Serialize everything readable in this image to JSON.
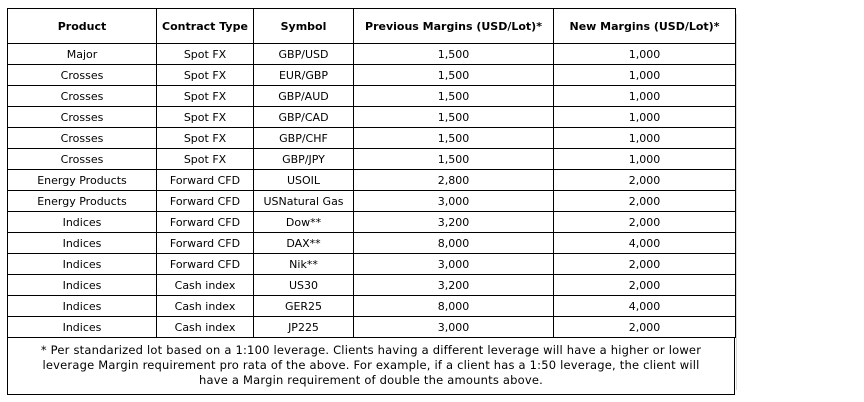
{
  "table": {
    "headers": [
      "Product",
      "Contract Type",
      "Symbol",
      "Previous Margins (USD/Lot)*",
      "New Margins (USD/Lot)*"
    ],
    "rows": [
      [
        "Major",
        "Spot FX",
        "GBP/USD",
        "1,500",
        "1,000"
      ],
      [
        "Crosses",
        "Spot FX",
        "EUR/GBP",
        "1,500",
        "1,000"
      ],
      [
        "Crosses",
        "Spot FX",
        "GBP/AUD",
        "1,500",
        "1,000"
      ],
      [
        "Crosses",
        "Spot FX",
        "GBP/CAD",
        "1,500",
        "1,000"
      ],
      [
        "Crosses",
        "Spot FX",
        "GBP/CHF",
        "1,500",
        "1,000"
      ],
      [
        "Crosses",
        "Spot FX",
        "GBP/JPY",
        "1,500",
        "1,000"
      ],
      [
        "Energy Products",
        "Forward CFD",
        "USOIL",
        "2,800",
        "2,000"
      ],
      [
        "Energy Products",
        "Forward CFD",
        "USNatural Gas",
        "3,000",
        "2,000"
      ],
      [
        "Indices",
        "Forward CFD",
        "Dow**",
        "3,200",
        "2,000"
      ],
      [
        "Indices",
        "Forward CFD",
        "DAX**",
        "8,000",
        "4,000"
      ],
      [
        "Indices",
        "Forward CFD",
        "Nik**",
        "3,000",
        "2,000"
      ],
      [
        "Indices",
        "Cash index",
        "US30",
        "3,200",
        "2,000"
      ],
      [
        "Indices",
        "Cash index",
        "GER25",
        "8,000",
        "4,000"
      ],
      [
        "Indices",
        "Cash index",
        "JP225",
        "3,000",
        "2,000"
      ]
    ]
  },
  "footnote": {
    "line1": "* Per standarized lot based on a 1:100 leverage. Clients having a different leverage will have a higher or lower",
    "line2": "leverage Margin requirement pro rata of the above. For example, if a client has a 1:50 leverage, the client will",
    "line3": "have a Margin requirement of double the amounts above."
  }
}
